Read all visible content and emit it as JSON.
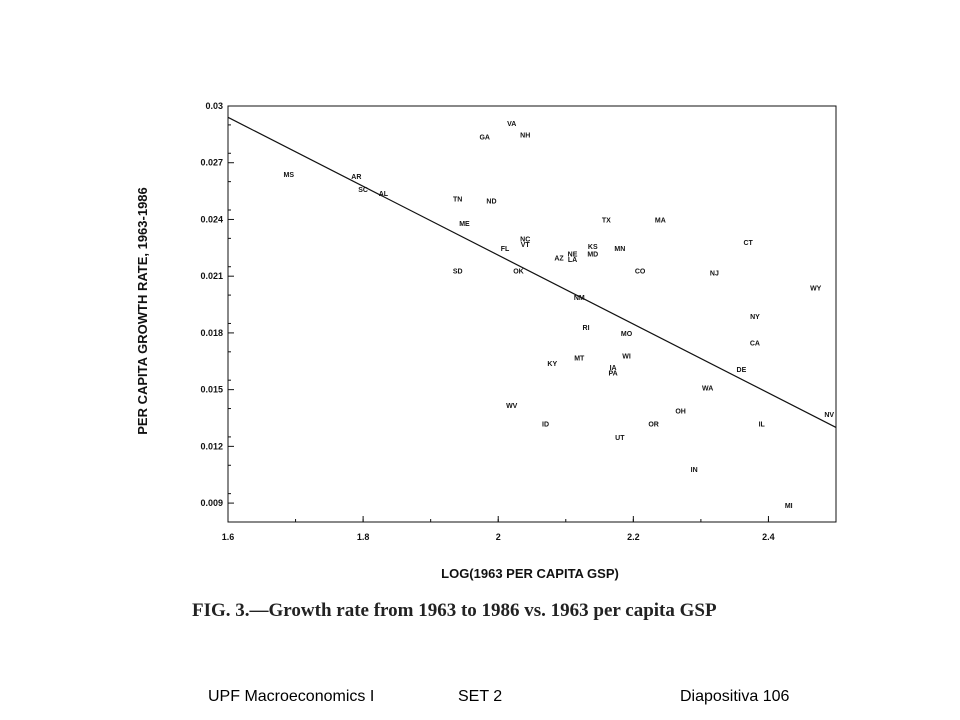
{
  "chart_data": {
    "type": "scatter",
    "title": "",
    "xlabel": "LOG(1963 PER CAPITA GSP)",
    "ylabel": "PER CAPITA GROWTH RATE, 1963-1986",
    "xlim": [
      1.6,
      2.5
    ],
    "ylim": [
      0.008,
      0.03
    ],
    "x_ticks": [
      1.6,
      1.8,
      2.0,
      2.2,
      2.4
    ],
    "x_tick_labels": [
      "1.6",
      "1.8",
      "2",
      "2.2",
      "2.4"
    ],
    "y_ticks": [
      0.009,
      0.012,
      0.015,
      0.018,
      0.021,
      0.024,
      0.027,
      0.03
    ],
    "y_tick_labels": [
      "0.009",
      "0.012",
      "0.015",
      "0.018",
      "0.021",
      "0.024",
      "0.027",
      "0.03"
    ],
    "grid": false,
    "fit_line": {
      "x": [
        1.6,
        2.5
      ],
      "y": [
        0.0294,
        0.013
      ]
    },
    "points": [
      {
        "label": "VA",
        "x": 2.02,
        "y": 0.0291
      },
      {
        "label": "NH",
        "x": 2.04,
        "y": 0.0285
      },
      {
        "label": "GA",
        "x": 1.98,
        "y": 0.0284
      },
      {
        "label": "MS",
        "x": 1.69,
        "y": 0.0264
      },
      {
        "label": "AR",
        "x": 1.79,
        "y": 0.0263
      },
      {
        "label": "SC",
        "x": 1.8,
        "y": 0.0256
      },
      {
        "label": "AL",
        "x": 1.83,
        "y": 0.0254
      },
      {
        "label": "TN",
        "x": 1.94,
        "y": 0.0251
      },
      {
        "label": "ND",
        "x": 1.99,
        "y": 0.025
      },
      {
        "label": "TX",
        "x": 2.16,
        "y": 0.024
      },
      {
        "label": "MA",
        "x": 2.24,
        "y": 0.024
      },
      {
        "label": "ME",
        "x": 1.95,
        "y": 0.0238
      },
      {
        "label": "NC",
        "x": 2.04,
        "y": 0.023
      },
      {
        "label": "VT",
        "x": 2.04,
        "y": 0.0227
      },
      {
        "label": "CT",
        "x": 2.37,
        "y": 0.0228
      },
      {
        "label": "FL",
        "x": 2.01,
        "y": 0.0225
      },
      {
        "label": "KS",
        "x": 2.14,
        "y": 0.0226
      },
      {
        "label": "MN",
        "x": 2.18,
        "y": 0.0225
      },
      {
        "label": "NE",
        "x": 2.11,
        "y": 0.0222
      },
      {
        "label": "MD",
        "x": 2.14,
        "y": 0.0222
      },
      {
        "label": "AZ",
        "x": 2.09,
        "y": 0.022
      },
      {
        "label": "LA",
        "x": 2.11,
        "y": 0.0219
      },
      {
        "label": "SD",
        "x": 1.94,
        "y": 0.0213
      },
      {
        "label": "OK",
        "x": 2.03,
        "y": 0.0213
      },
      {
        "label": "CO",
        "x": 2.21,
        "y": 0.0213
      },
      {
        "label": "NJ",
        "x": 2.32,
        "y": 0.0212
      },
      {
        "label": "WY",
        "x": 2.47,
        "y": 0.0204
      },
      {
        "label": "NM",
        "x": 2.12,
        "y": 0.0199
      },
      {
        "label": "NY",
        "x": 2.38,
        "y": 0.0189
      },
      {
        "label": "RI",
        "x": 2.13,
        "y": 0.0183
      },
      {
        "label": "MO",
        "x": 2.19,
        "y": 0.018
      },
      {
        "label": "CA",
        "x": 2.38,
        "y": 0.0175
      },
      {
        "label": "MT",
        "x": 2.12,
        "y": 0.0167
      },
      {
        "label": "WI",
        "x": 2.19,
        "y": 0.0168
      },
      {
        "label": "KY",
        "x": 2.08,
        "y": 0.0164
      },
      {
        "label": "IA",
        "x": 2.17,
        "y": 0.0162
      },
      {
        "label": "DE",
        "x": 2.36,
        "y": 0.0161
      },
      {
        "label": "PA",
        "x": 2.17,
        "y": 0.0159
      },
      {
        "label": "WA",
        "x": 2.31,
        "y": 0.0151
      },
      {
        "label": "WV",
        "x": 2.02,
        "y": 0.0142
      },
      {
        "label": "OH",
        "x": 2.27,
        "y": 0.0139
      },
      {
        "label": "NV",
        "x": 2.49,
        "y": 0.0137
      },
      {
        "label": "ID",
        "x": 2.07,
        "y": 0.0132
      },
      {
        "label": "OR",
        "x": 2.23,
        "y": 0.0132
      },
      {
        "label": "IL",
        "x": 2.39,
        "y": 0.0132
      },
      {
        "label": "UT",
        "x": 2.18,
        "y": 0.0125
      },
      {
        "label": "IN",
        "x": 2.29,
        "y": 0.0108
      },
      {
        "label": "MI",
        "x": 2.43,
        "y": 0.0089
      }
    ]
  },
  "caption": "FIG. 3.—Growth rate from 1963 to 1986 vs. 1963 per capita GSP",
  "footer": {
    "course": "UPF Macroeconomics I",
    "set": "SET 2",
    "slide": "Diapositiva 106"
  }
}
